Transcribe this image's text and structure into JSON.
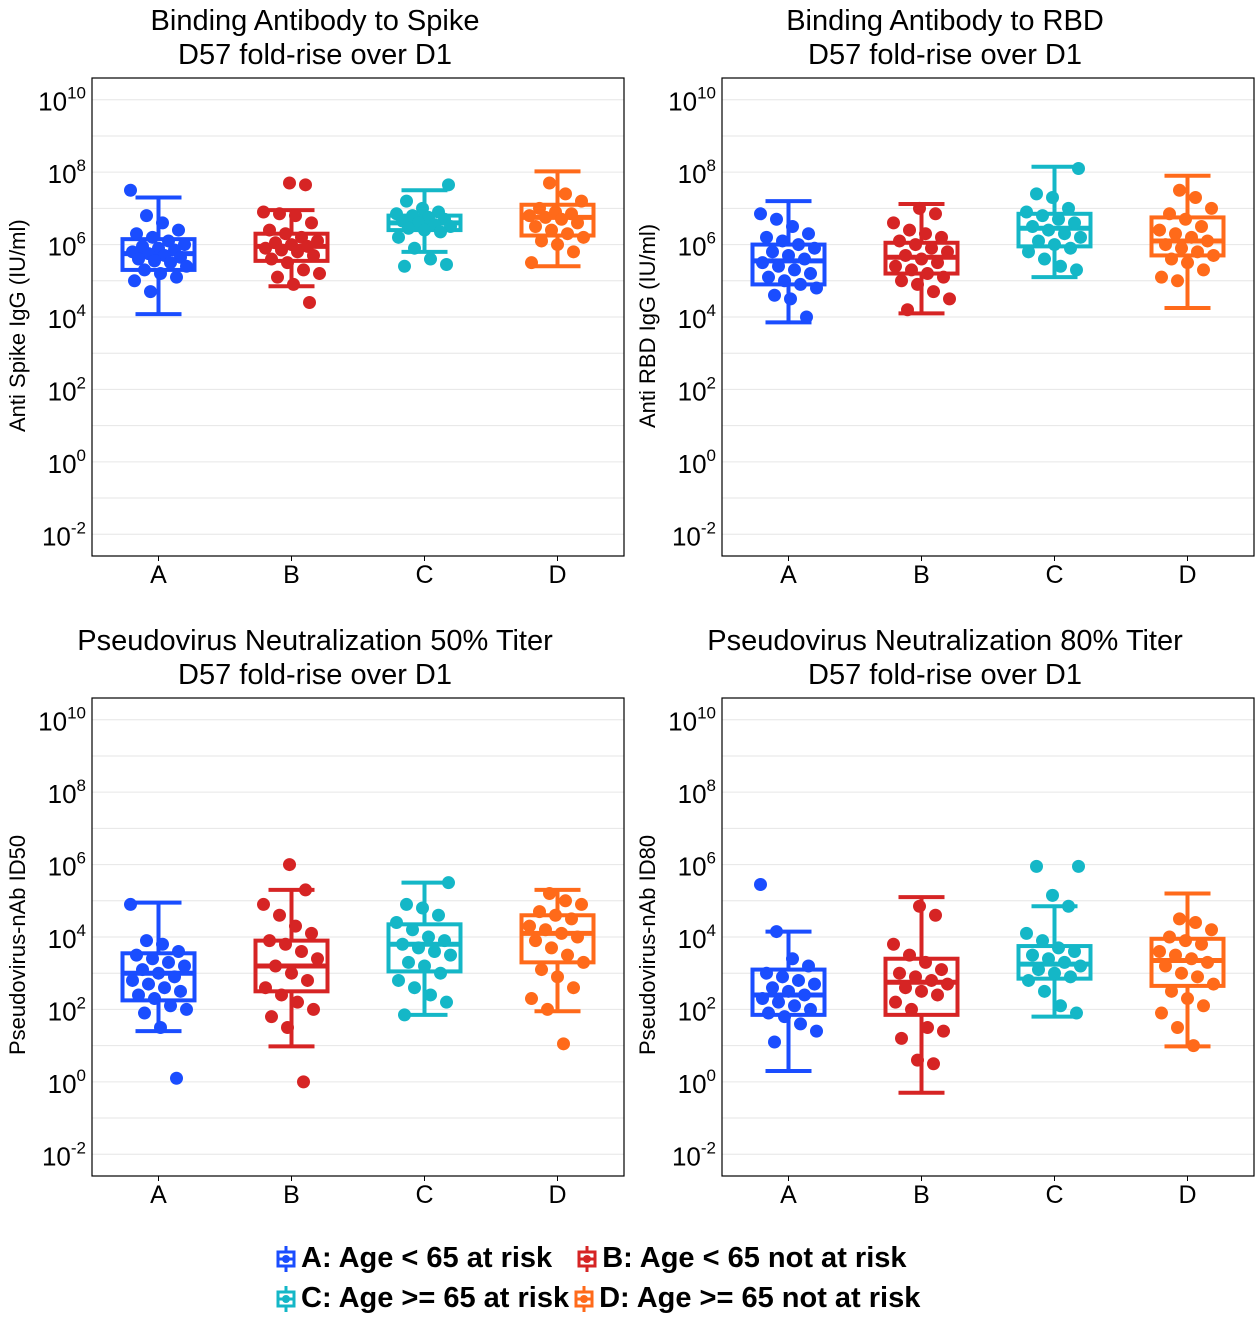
{
  "chart_data": [
    {
      "type": "box",
      "title_line1": "Binding Antibody to Spike",
      "title_line2": "D57 fold-rise over D1",
      "ylabel": "Anti Spike IgG (IU/ml)",
      "yscale": "log10",
      "ylim": [
        -2.6,
        10.6
      ],
      "ytick_exponents": [
        -2,
        0,
        2,
        4,
        6,
        8,
        10
      ],
      "categories": [
        "A",
        "B",
        "C",
        "D"
      ],
      "boxes": [
        {
          "category": "A",
          "whisker_low": 4.08,
          "q1": 5.3,
          "median": 5.75,
          "q3": 6.15,
          "whisker_high": 7.3,
          "points": [
            7.5,
            6.8,
            6.6,
            6.4,
            6.3,
            6.2,
            6.1,
            6.0,
            5.95,
            5.9,
            5.85,
            5.8,
            5.75,
            5.7,
            5.65,
            5.6,
            5.55,
            5.5,
            5.4,
            5.3,
            5.2,
            5.1,
            5.0,
            4.7
          ]
        },
        {
          "category": "B",
          "whisker_low": 4.85,
          "q1": 5.55,
          "median": 5.95,
          "q3": 6.3,
          "whisker_high": 6.95,
          "points": [
            7.7,
            7.65,
            6.9,
            6.85,
            6.8,
            6.6,
            6.4,
            6.3,
            6.2,
            6.1,
            6.05,
            6.0,
            5.95,
            5.9,
            5.85,
            5.8,
            5.7,
            5.6,
            5.5,
            5.3,
            5.2,
            5.1,
            4.9,
            4.4
          ]
        },
        {
          "category": "C",
          "whisker_low": 5.8,
          "q1": 6.4,
          "median": 6.6,
          "q3": 6.8,
          "whisker_high": 7.5,
          "points": [
            7.65,
            7.2,
            7.0,
            6.9,
            6.85,
            6.8,
            6.75,
            6.7,
            6.65,
            6.6,
            6.55,
            6.5,
            6.45,
            6.4,
            6.35,
            6.2,
            5.9,
            5.6,
            5.45,
            5.4
          ]
        },
        {
          "category": "D",
          "whisker_low": 5.4,
          "q1": 6.25,
          "median": 6.75,
          "q3": 7.1,
          "whisker_high": 8.02,
          "points": [
            7.7,
            7.4,
            7.2,
            7.0,
            6.9,
            6.85,
            6.8,
            6.75,
            6.7,
            6.6,
            6.5,
            6.4,
            6.3,
            6.2,
            6.1,
            6.0,
            5.8,
            5.5
          ]
        }
      ]
    },
    {
      "type": "box",
      "title_line1": "Binding Antibody to RBD",
      "title_line2": "D57 fold-rise over D1",
      "ylabel": "Anti RBD IgG (IU/ml)",
      "yscale": "log10",
      "ylim": [
        -2.6,
        10.6
      ],
      "ytick_exponents": [
        -2,
        0,
        2,
        4,
        6,
        8,
        10
      ],
      "categories": [
        "A",
        "B",
        "C",
        "D"
      ],
      "boxes": [
        {
          "category": "A",
          "whisker_low": 3.85,
          "q1": 4.9,
          "median": 5.55,
          "q3": 6.0,
          "whisker_high": 7.2,
          "points": [
            6.85,
            6.7,
            6.5,
            6.3,
            6.2,
            6.1,
            6.0,
            5.9,
            5.8,
            5.7,
            5.6,
            5.5,
            5.4,
            5.3,
            5.2,
            5.1,
            5.0,
            4.9,
            4.8,
            4.6,
            4.5,
            4.0
          ]
        },
        {
          "category": "B",
          "whisker_low": 4.1,
          "q1": 5.2,
          "median": 5.65,
          "q3": 6.05,
          "whisker_high": 7.12,
          "points": [
            7.0,
            6.85,
            6.6,
            6.4,
            6.3,
            6.2,
            6.1,
            6.0,
            5.9,
            5.8,
            5.7,
            5.6,
            5.5,
            5.4,
            5.3,
            5.2,
            5.1,
            5.0,
            4.9,
            4.7,
            4.5,
            4.2
          ]
        },
        {
          "category": "C",
          "whisker_low": 5.1,
          "q1": 5.95,
          "median": 6.45,
          "q3": 6.85,
          "whisker_high": 8.15,
          "points": [
            8.1,
            7.4,
            7.3,
            7.0,
            6.9,
            6.8,
            6.7,
            6.6,
            6.5,
            6.4,
            6.3,
            6.2,
            6.1,
            6.0,
            5.9,
            5.8,
            5.6,
            5.4,
            5.3
          ]
        },
        {
          "category": "D",
          "whisker_low": 4.25,
          "q1": 5.7,
          "median": 6.1,
          "q3": 6.75,
          "whisker_high": 7.9,
          "points": [
            7.5,
            7.3,
            7.0,
            6.85,
            6.7,
            6.5,
            6.4,
            6.3,
            6.2,
            6.1,
            6.0,
            5.9,
            5.8,
            5.7,
            5.6,
            5.5,
            5.3,
            5.1,
            5.0
          ]
        }
      ]
    },
    {
      "type": "box",
      "title_line1": "Pseudovirus Neutralization 50% Titer",
      "title_line2": "D57 fold-rise over D1",
      "ylabel": "Pseudovirus-nAb ID50",
      "yscale": "log10",
      "ylim": [
        -2.6,
        10.6
      ],
      "ytick_exponents": [
        -2,
        0,
        2,
        4,
        6,
        8,
        10
      ],
      "categories": [
        "A",
        "B",
        "C",
        "D"
      ],
      "boxes": [
        {
          "category": "A",
          "whisker_low": 1.4,
          "q1": 2.25,
          "median": 3.0,
          "q3": 3.55,
          "whisker_high": 4.95,
          "points": [
            4.9,
            3.9,
            3.8,
            3.6,
            3.5,
            3.4,
            3.3,
            3.2,
            3.1,
            3.0,
            2.9,
            2.8,
            2.7,
            2.6,
            2.5,
            2.4,
            2.3,
            2.1,
            2.0,
            1.9,
            1.5,
            0.1
          ]
        },
        {
          "category": "B",
          "whisker_low": 0.98,
          "q1": 2.5,
          "median": 3.2,
          "q3": 3.9,
          "whisker_high": 5.3,
          "points": [
            6.0,
            5.3,
            4.9,
            4.6,
            4.3,
            4.1,
            3.9,
            3.8,
            3.6,
            3.4,
            3.2,
            3.0,
            2.8,
            2.6,
            2.4,
            2.2,
            2.0,
            1.8,
            1.5,
            0.0
          ]
        },
        {
          "category": "C",
          "whisker_low": 1.85,
          "q1": 3.05,
          "median": 3.8,
          "q3": 4.35,
          "whisker_high": 5.5,
          "points": [
            5.5,
            4.9,
            4.8,
            4.6,
            4.4,
            4.2,
            4.0,
            3.9,
            3.8,
            3.7,
            3.6,
            3.5,
            3.3,
            3.2,
            3.0,
            2.8,
            2.6,
            2.4,
            2.2,
            1.85
          ]
        },
        {
          "category": "D",
          "whisker_low": 1.95,
          "q1": 3.3,
          "median": 4.1,
          "q3": 4.6,
          "whisker_high": 5.3,
          "points": [
            5.2,
            5.0,
            4.9,
            4.7,
            4.6,
            4.5,
            4.3,
            4.2,
            4.1,
            4.0,
            3.9,
            3.7,
            3.5,
            3.3,
            3.1,
            2.9,
            2.6,
            2.3,
            2.0,
            1.05
          ]
        }
      ]
    },
    {
      "type": "box",
      "title_line1": "Pseudovirus Neutralization 80% Titer",
      "title_line2": "D57 fold-rise over D1",
      "ylabel": "Pseudovirus-nAb ID80",
      "yscale": "log10",
      "ylim": [
        -2.6,
        10.6
      ],
      "ytick_exponents": [
        -2,
        0,
        2,
        4,
        6,
        8,
        10
      ],
      "categories": [
        "A",
        "B",
        "C",
        "D"
      ],
      "boxes": [
        {
          "category": "A",
          "whisker_low": 0.3,
          "q1": 1.85,
          "median": 2.4,
          "q3": 3.1,
          "whisker_high": 4.15,
          "points": [
            5.45,
            4.15,
            3.4,
            3.2,
            3.0,
            2.9,
            2.8,
            2.7,
            2.6,
            2.5,
            2.4,
            2.3,
            2.2,
            2.1,
            2.0,
            1.9,
            1.8,
            1.6,
            1.4,
            1.1
          ]
        },
        {
          "category": "B",
          "whisker_low": -0.3,
          "q1": 1.85,
          "median": 2.75,
          "q3": 3.4,
          "whisker_high": 5.1,
          "points": [
            4.85,
            4.6,
            3.8,
            3.5,
            3.3,
            3.1,
            3.0,
            2.9,
            2.8,
            2.7,
            2.6,
            2.5,
            2.4,
            2.2,
            2.0,
            1.5,
            1.4,
            1.2,
            0.6,
            0.5
          ]
        },
        {
          "category": "C",
          "whisker_low": 1.8,
          "q1": 2.85,
          "median": 3.25,
          "q3": 3.75,
          "whisker_high": 4.85,
          "points": [
            5.95,
            5.95,
            5.15,
            4.85,
            4.1,
            3.9,
            3.7,
            3.6,
            3.5,
            3.4,
            3.3,
            3.2,
            3.1,
            3.0,
            2.9,
            2.8,
            2.5,
            2.1,
            1.9
          ]
        },
        {
          "category": "D",
          "whisker_low": 0.98,
          "q1": 2.65,
          "median": 3.35,
          "q3": 3.95,
          "whisker_high": 5.2,
          "points": [
            4.5,
            4.4,
            4.2,
            4.0,
            3.9,
            3.8,
            3.6,
            3.5,
            3.4,
            3.3,
            3.2,
            3.0,
            2.9,
            2.7,
            2.5,
            2.3,
            2.1,
            1.9,
            1.5,
            1.0
          ]
        }
      ]
    }
  ],
  "legend": {
    "items": [
      {
        "label": "A: Age < 65 at risk",
        "color": "#1a4dff"
      },
      {
        "label": "B: Age < 65 not at risk",
        "color": "#d62424"
      },
      {
        "label": "C: Age >= 65 at risk",
        "color": "#14b7c7"
      },
      {
        "label": "D: Age >= 65 not at risk",
        "color": "#ff6a1a"
      }
    ]
  },
  "colors": {
    "A": "#1a4dff",
    "B": "#d62424",
    "C": "#14b7c7",
    "D": "#ff6a1a",
    "grid": "#e6e6e6",
    "frame": "#000000"
  }
}
